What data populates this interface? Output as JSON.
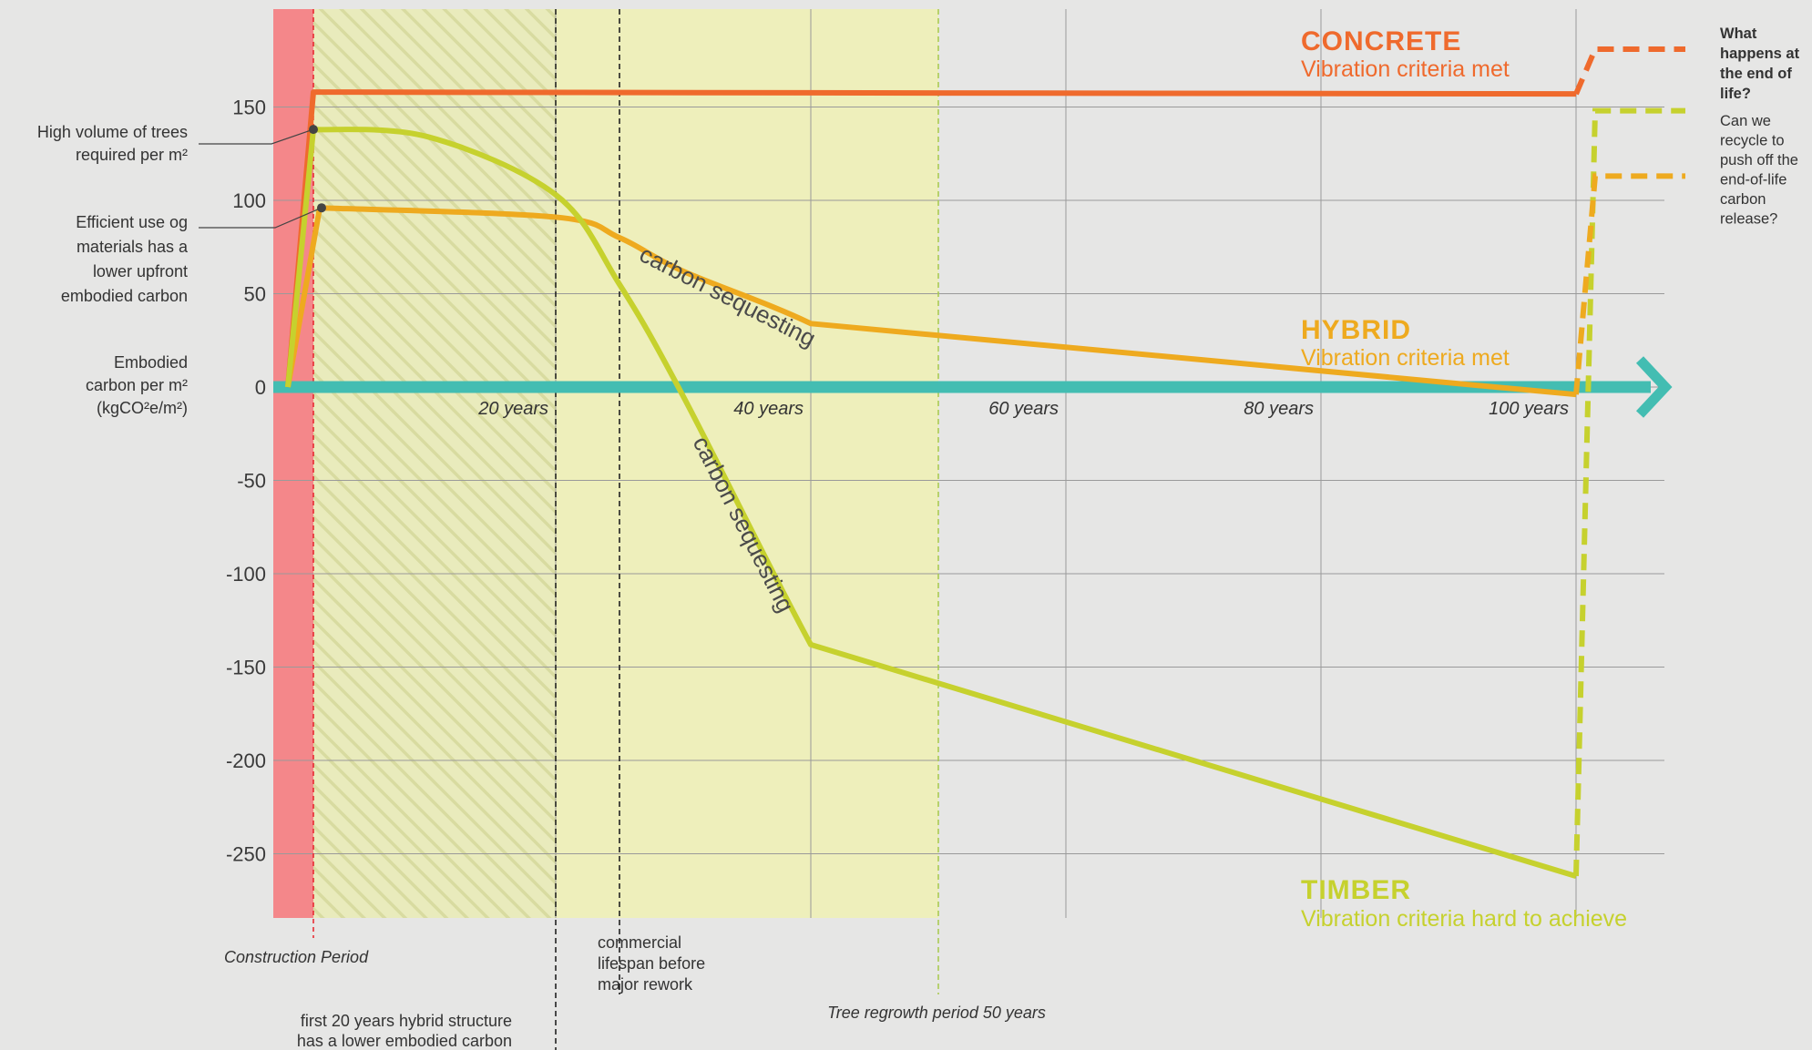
{
  "chart_data": {
    "type": "line",
    "y_ticks": [
      "150",
      "100",
      "50",
      "0",
      "-50",
      "-100",
      "-150",
      "-200",
      "-250"
    ],
    "y_tick_values": [
      150,
      100,
      50,
      0,
      -50,
      -100,
      -150,
      -200,
      -250
    ],
    "ylim": [
      -282,
      200
    ],
    "xlim": [
      -1,
      110
    ],
    "x_ticks": [
      "20 years",
      "40 years",
      "60 years",
      "80 years",
      "100 years"
    ],
    "x_tick_values": [
      20,
      40,
      60,
      80,
      100
    ],
    "grid": true,
    "ylabel_lines": [
      "Embodied",
      "carbon per m²",
      "(kgCO²e/m²)"
    ],
    "series": [
      {
        "name": "CONCRETE",
        "subtitle": "Vibration criteria met",
        "color": "#ef6a2d",
        "points": [
          [
            -1,
            0
          ],
          [
            1,
            158
          ],
          [
            100,
            157
          ],
          [
            101.5,
            181
          ]
        ]
      },
      {
        "name": "HYBRID",
        "subtitle": "Vibration criteria met",
        "color": "#eeaa1f",
        "points": [
          [
            -1,
            0
          ],
          [
            1.5,
            96
          ],
          [
            20,
            91
          ],
          [
            25,
            80
          ],
          [
            30,
            62
          ],
          [
            40,
            34
          ],
          [
            50,
            -4
          ],
          [
            100,
            -4
          ],
          [
            101.5,
            113
          ]
        ]
      },
      {
        "name": "TIMBER",
        "subtitle": "Vibration criteria hard to achieve",
        "color": "#c6d12e",
        "points": [
          [
            -1,
            0
          ],
          [
            1,
            138
          ],
          [
            10,
            134
          ],
          [
            20,
            103
          ],
          [
            25,
            55
          ],
          [
            30,
            -5
          ],
          [
            40,
            -138
          ],
          [
            50,
            -258
          ],
          [
            100,
            -262
          ],
          [
            101.5,
            148
          ]
        ]
      }
    ],
    "end_of_life": {
      "concrete": 181,
      "timber": 148,
      "hybrid": 113
    },
    "construction_period": [
      -1,
      1
    ],
    "hatch_region": [
      1,
      20
    ],
    "regrowth_region": [
      1,
      50
    ],
    "markers": [
      20,
      25,
      50
    ],
    "annotations": {
      "trees": [
        "High volume of trees",
        "required per m²"
      ],
      "efficient": [
        "Efficient use og",
        "materials has a",
        "lower upfront",
        "embodied carbon"
      ],
      "construction": "Construction Period",
      "first20": [
        "first 20 years hybrid structure",
        "has a lower embodied carbon"
      ],
      "commercial": [
        "commercial",
        "lifespan before",
        "major rework"
      ],
      "regrowth": "Tree regrowth period 50 years",
      "seq_hybrid": "carbon sequesting",
      "seq_timber": "carbon sequesting",
      "question_title": [
        "What",
        "happens at",
        "the end of",
        "life?"
      ],
      "question_body": [
        "Can we",
        "recycle to",
        "push off the",
        "end-of-life",
        "carbon",
        "release?"
      ]
    },
    "colors": {
      "axis": "#43bdb2",
      "construction": "#f4878a",
      "regrowth": "#eeefbb",
      "construction_text": "#e8202a",
      "regrowth_text": "#a5c94b"
    }
  }
}
